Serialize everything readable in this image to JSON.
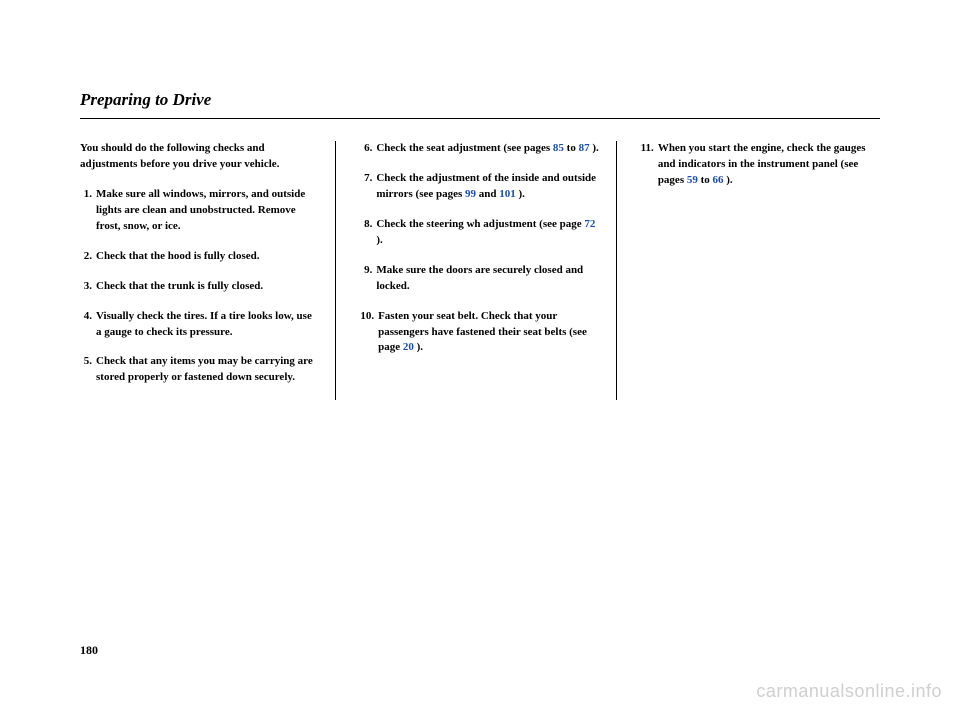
{
  "title": "Preparing to Drive",
  "intro": "You should do the following checks and adjustments before you drive your vehicle.",
  "col1": [
    {
      "n": "1.",
      "t": "Make sure all windows, mirrors, and outside lights are clean and unobstructed. Remove frost, snow, or ice."
    },
    {
      "n": "2.",
      "t": "Check that the hood is fully closed."
    },
    {
      "n": "3.",
      "t": "Check that the trunk is fully closed."
    },
    {
      "n": "4.",
      "t": "Visually check the tires. If a tire looks low, use a gauge to check its pressure."
    },
    {
      "n": "5.",
      "t": "Check that any items you may be carrying are stored properly or fastened down securely."
    }
  ],
  "col2": [
    {
      "n": "6.",
      "pre": "Check the seat adjustment (see pages ",
      "l1": "85",
      "mid": " to ",
      "l2": "87",
      "post": " )."
    },
    {
      "n": "7.",
      "pre": "Check the adjustment of the inside and outside mirrors (see pages ",
      "l1": "99",
      "mid": " and ",
      "l2": "101",
      "post": " )."
    },
    {
      "n": "8.",
      "pre": "Check the steering wh adjustment (see page ",
      "l1": "72",
      "mid": "",
      "l2": "",
      "post": " )."
    },
    {
      "n": "9.",
      "pre": "Make sure the doors are securely closed and locked.",
      "l1": "",
      "mid": "",
      "l2": "",
      "post": ""
    },
    {
      "n": "10.",
      "pre": "Fasten your seat belt. Check that your passengers have fastened their seat belts (see page ",
      "l1": "20",
      "mid": "",
      "l2": "",
      "post": " )."
    }
  ],
  "col3": [
    {
      "n": "11.",
      "pre": "When you start the engine, check the gauges and indicators in the instrument panel (see pages ",
      "l1": "59",
      "mid": " to ",
      "l2": "66",
      "post": " )."
    }
  ],
  "pageNumber": "180",
  "watermark": "carmanualsonline.info"
}
